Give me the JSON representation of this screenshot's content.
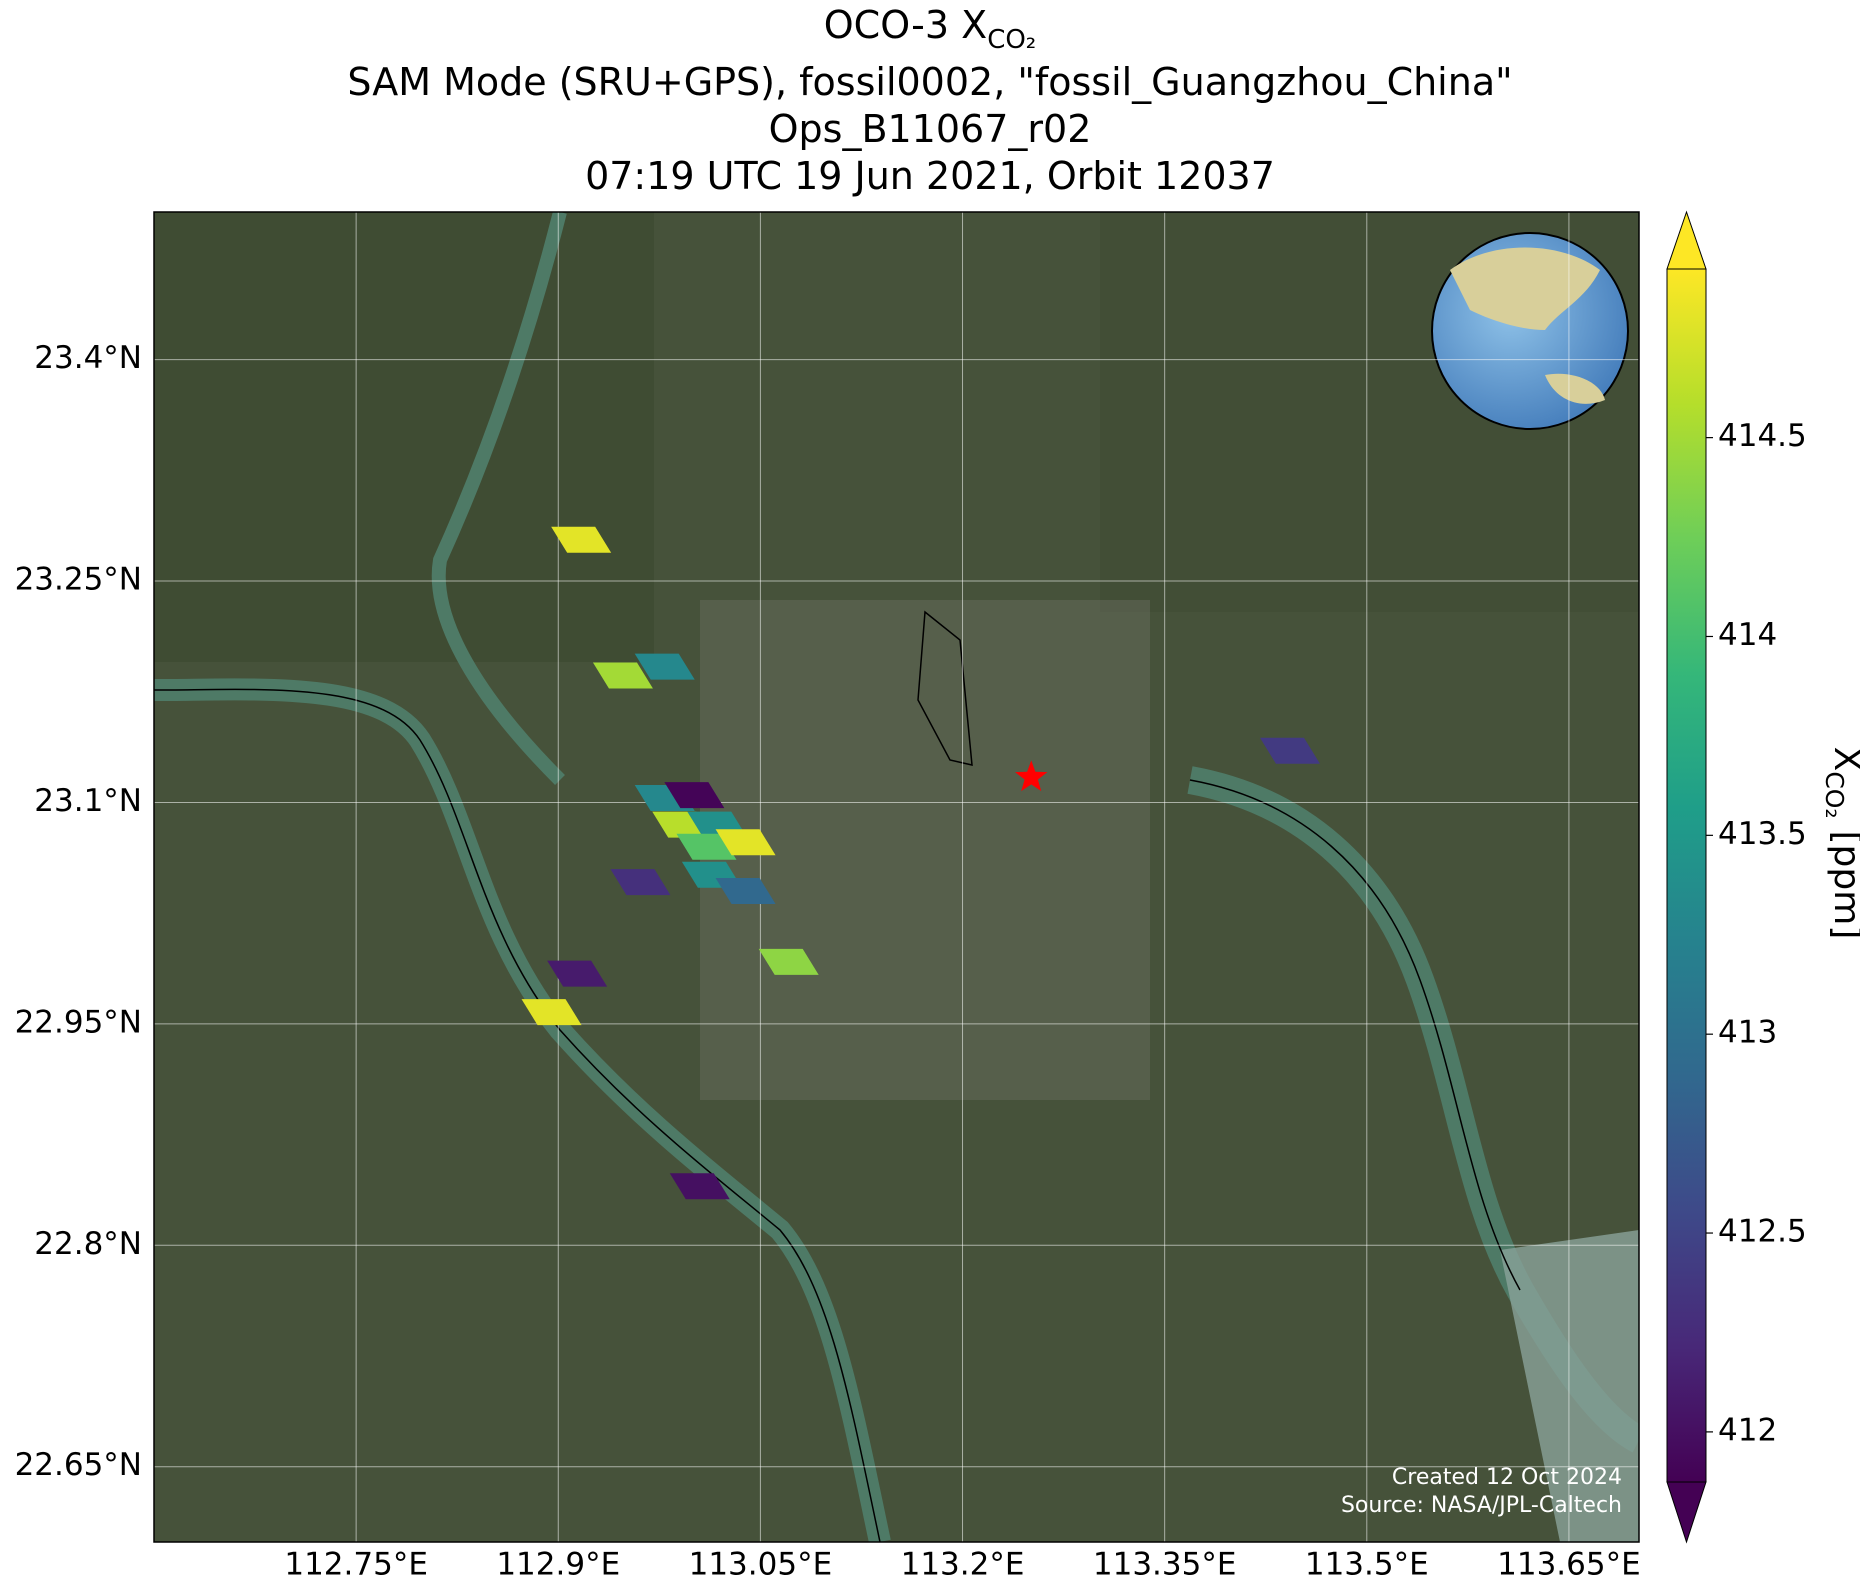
{
  "chart_data": {
    "type": "map",
    "title": {
      "main": "OCO-3 X",
      "sub": "CO₂"
    },
    "subtitle": [
      "SAM Mode (SRU+GPS), fossil0002, \"fossil_Guangzhou_China\"",
      "Ops_B11067_r02",
      "07:19 UTC 19 Jun 2021, Orbit 12037"
    ],
    "x": [
      112.917,
      112.948,
      112.979,
      112.979,
      113.001,
      112.992,
      113.018,
      113.01,
      113.039,
      113.014,
      113.039,
      112.961,
      113.071,
      112.914,
      112.895,
      113.005,
      113.443
    ],
    "y": [
      23.278,
      23.186,
      23.192,
      23.103,
      23.105,
      23.085,
      23.085,
      23.07,
      23.073,
      23.051,
      23.04,
      23.046,
      22.992,
      22.984,
      22.958,
      22.84,
      23.135
    ],
    "values": [
      414.8,
      414.5,
      413.3,
      413.3,
      411.9,
      414.6,
      413.4,
      414.1,
      414.8,
      413.4,
      412.9,
      412.3,
      414.4,
      412.1,
      414.8,
      412.0,
      412.4
    ],
    "xlim": [
      112.6,
      113.702
    ],
    "ylim": [
      22.599,
      23.5
    ],
    "xticks": [
      {
        "value": 112.75,
        "label": "112.75°E"
      },
      {
        "value": 112.9,
        "label": "112.9°E"
      },
      {
        "value": 113.05,
        "label": "113.05°E"
      },
      {
        "value": 113.2,
        "label": "113.2°E"
      },
      {
        "value": 113.35,
        "label": "113.35°E"
      },
      {
        "value": 113.5,
        "label": "113.5°E"
      },
      {
        "value": 113.65,
        "label": "113.65°E"
      }
    ],
    "yticks": [
      {
        "value": 22.65,
        "label": "22.65°N"
      },
      {
        "value": 22.8,
        "label": "22.8°N"
      },
      {
        "value": 22.95,
        "label": "22.95°N"
      },
      {
        "value": 23.1,
        "label": "23.1°N"
      },
      {
        "value": 23.25,
        "label": "23.25°N"
      },
      {
        "value": 23.4,
        "label": "23.4°N"
      }
    ],
    "grid": true,
    "colormap": "viridis",
    "colorbar": {
      "clim": [
        411.874,
        414.924
      ],
      "ticks": [
        412.0,
        412.5,
        413.0,
        413.5,
        414.0,
        414.5
      ],
      "extend": "both",
      "label": {
        "main": "X",
        "sub": "CO₂",
        "unit": "[ppm]"
      }
    },
    "marker": {
      "x": 113.251,
      "y": 23.117,
      "color": "#ff0000"
    },
    "annotations": [
      "Created 12 Oct 2024",
      "Source: NASA/JPL-Caltech"
    ]
  }
}
